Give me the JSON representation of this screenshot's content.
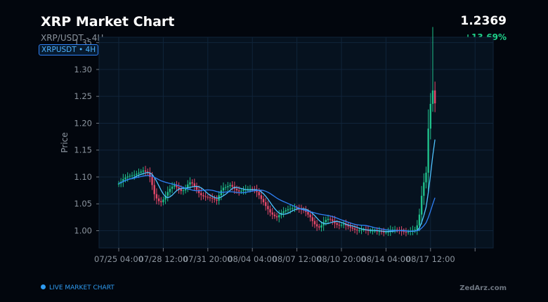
{
  "header": {
    "title": "XRP Market Chart",
    "price": "1.2369",
    "subtitle": "XRP/USDT - 4H",
    "change": "+13.69%",
    "badge": "XRPUSDT  •  4H"
  },
  "footer": {
    "live_label": "LIVE MARKET CHART",
    "brand": "ZedArz.com"
  },
  "colors": {
    "up": "#1fbf8a",
    "down": "#e5486a",
    "ma_fast": "#4fc3ff",
    "ma_slow": "#2f81f7",
    "plot_bg": "#06121f",
    "grid": "#10243a"
  },
  "chart_data": {
    "type": "candlestick",
    "symbol": "XRPUSDT",
    "interval": "4H",
    "ylabel": "Price",
    "xlabel": "",
    "ylim": [
      0.968,
      1.36
    ],
    "yticks": [
      1.0,
      1.05,
      1.1,
      1.15,
      1.2,
      1.25,
      1.3,
      1.35
    ],
    "ytick_labels": [
      "1.00",
      "1.05",
      "1.10",
      "1.15",
      "1.20",
      "1.25",
      "1.30",
      "1.35"
    ],
    "xticks": [
      {
        "index": 0,
        "label": "07/25 04:00"
      },
      {
        "index": 20,
        "label": "07/28 12:00"
      },
      {
        "index": 40,
        "label": "07/31 20:00"
      },
      {
        "index": 60,
        "label": "08/04 04:00"
      },
      {
        "index": 80,
        "label": "08/07 12:00"
      },
      {
        "index": 100,
        "label": "08/10 20:00"
      },
      {
        "index": 120,
        "label": "08/14 04:00"
      },
      {
        "index": 140,
        "label": "08/17 12:00"
      },
      {
        "index": 160,
        "label": ""
      }
    ],
    "close": [
      1.088,
      1.091,
      1.096,
      1.099,
      1.101,
      1.102,
      1.103,
      1.104,
      1.106,
      1.108,
      1.11,
      1.112,
      1.11,
      1.108,
      1.1,
      1.085,
      1.068,
      1.06,
      1.055,
      1.053,
      1.058,
      1.065,
      1.072,
      1.078,
      1.082,
      1.085,
      1.081,
      1.078,
      1.074,
      1.075,
      1.08,
      1.086,
      1.09,
      1.088,
      1.083,
      1.076,
      1.07,
      1.066,
      1.064,
      1.063,
      1.062,
      1.061,
      1.06,
      1.058,
      1.056,
      1.066,
      1.075,
      1.08,
      1.081,
      1.083,
      1.085,
      1.082,
      1.078,
      1.075,
      1.073,
      1.074,
      1.076,
      1.077,
      1.078,
      1.078,
      1.077,
      1.076,
      1.072,
      1.066,
      1.059,
      1.053,
      1.046,
      1.04,
      1.034,
      1.03,
      1.027,
      1.025,
      1.029,
      1.033,
      1.036,
      1.038,
      1.04,
      1.041,
      1.042,
      1.043,
      1.042,
      1.04,
      1.039,
      1.038,
      1.035,
      1.03,
      1.025,
      1.018,
      1.012,
      1.008,
      1.006,
      1.01,
      1.016,
      1.02,
      1.022,
      1.021,
      1.018,
      1.014,
      1.011,
      1.01,
      1.011,
      1.012,
      1.01,
      1.008,
      1.006,
      1.004,
      1.002,
      1.001,
      1.001,
      1.002,
      1.002,
      1.001,
      1.0,
      1.0,
      1.0,
      1.0,
      0.999,
      0.999,
      0.998,
      0.997,
      0.997,
      0.999,
      1.001,
      1.002,
      1.002,
      1.001,
      1.0,
      0.999,
      0.998,
      0.997,
      0.998,
      1.0,
      1.001,
      1.002,
      1.01,
      1.03,
      1.065,
      1.09,
      1.108,
      1.19,
      1.236,
      1.261,
      1.237
    ],
    "series": [
      {
        "name": "MA fast",
        "role": "moving average"
      },
      {
        "name": "MA slow",
        "role": "moving average"
      }
    ],
    "grid": true,
    "legend": "none"
  }
}
